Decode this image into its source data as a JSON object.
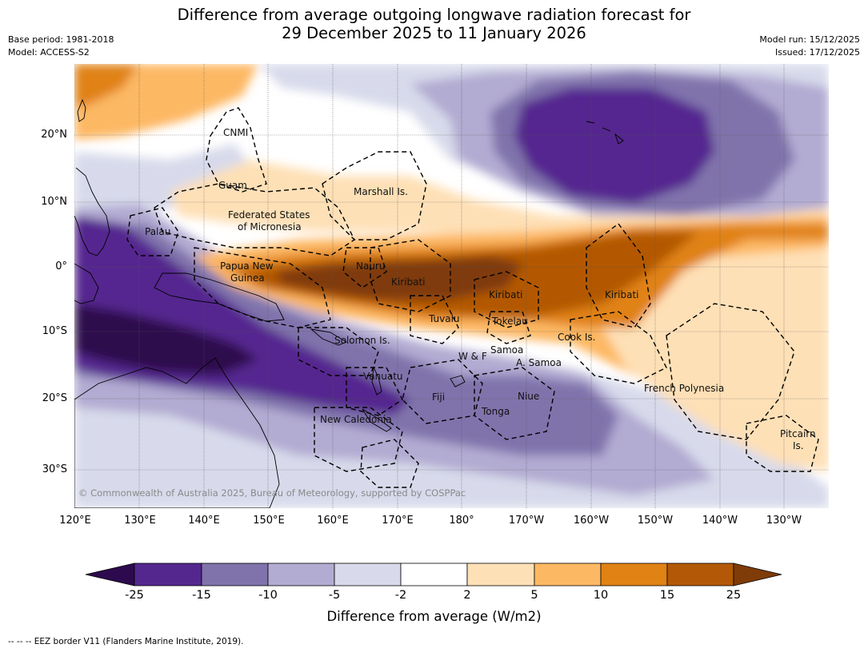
{
  "title": {
    "line1": "Difference from average outgoing longwave radiation forecast for",
    "line2": "29 December 2025 to 11 January 2026"
  },
  "meta": {
    "base_period": "Base period: 1981-2018",
    "model": "Model: ACCESS-S2",
    "model_run": "Model run: 15/12/2025",
    "issued": "Issued: 17/12/2025"
  },
  "map": {
    "lat_labels": [
      "20°N",
      "10°N",
      "0°",
      "10°S",
      "20°S",
      "30°S"
    ],
    "lon_labels": [
      "120°E",
      "130°E",
      "140°E",
      "150°E",
      "160°E",
      "170°E",
      "180°",
      "170°W",
      "160°W",
      "150°W",
      "140°W",
      "130°W"
    ],
    "places": {
      "cnmi": "CNMI",
      "guam": "Guam",
      "marshall": "Marshall Is.",
      "fsm_1": "Federated States",
      "fsm_2": "of Micronesia",
      "palau": "Palau",
      "png_1": "Papua New",
      "png_2": "Guinea",
      "nauru": "Nauru",
      "kiribati_w": "Kiribati",
      "kiribati_c": "Kiribati",
      "kiribati_e": "Kiribati",
      "tuvalu": "Tuvalu",
      "tokelau": "Tokelau",
      "cook": "Cook Is.",
      "solomon": "Solomon Is.",
      "samoa": "Samoa",
      "wf": "W & F",
      "asamoa": "A. Samoa",
      "vanuatu": "Vanuatu",
      "fiji": "Fiji",
      "niue": "Niue",
      "tonga": "Tonga",
      "new_caledonia": "New Caledonia",
      "french_polynesia": "French Polynesia",
      "pitcairn_1": "Pitcairn",
      "pitcairn_2": "Is."
    },
    "copyright": "© Commonwealth of Australia 2025, Bureau of Meteorology, supported by COSPPac"
  },
  "colorbar": {
    "ticks": [
      "-25",
      "-15",
      "-10",
      "-5",
      "-2",
      "2",
      "5",
      "10",
      "15",
      "25"
    ],
    "colors": {
      "lt_neg25": "#2d0a4e",
      "n25_15": "#54278f",
      "n15_10": "#8073ac",
      "n10_5": "#b2abd2",
      "n5_2": "#d8daeb",
      "n2_2": "#ffffff",
      "p2_5": "#fee0b6",
      "p5_10": "#fdb863",
      "p10_15": "#e08214",
      "p15_25": "#b35806",
      "gt_25": "#7f3b08"
    },
    "label": "Difference from average (W/m2)"
  },
  "footer": "--  --  -- EEZ border V11 (Flanders Marine Institute, 2019)."
}
